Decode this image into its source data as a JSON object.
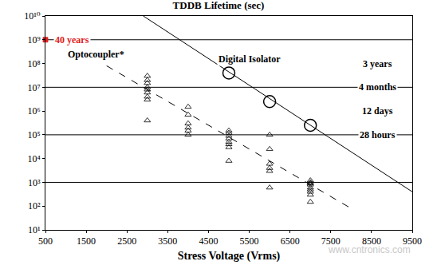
{
  "chart_data": {
    "type": "scatter",
    "title": "TDDB Lifetime (sec)",
    "x_label": "Stress Voltage (Vrms)",
    "log": "y",
    "grid": false,
    "xlim": [
      500,
      9500
    ],
    "xticks": [
      500,
      1500,
      2500,
      3500,
      4500,
      5500,
      6500,
      7500,
      8500,
      9500
    ],
    "ylim": [
      10,
      10000000000
    ],
    "yticks": [
      {
        "value": 10,
        "label": "10¹"
      },
      {
        "value": 100,
        "label": "10²"
      },
      {
        "value": 1000,
        "label": "10³"
      },
      {
        "value": 10000,
        "label": "10⁴"
      },
      {
        "value": 100000,
        "label": "10⁵"
      },
      {
        "value": 1000000,
        "label": "10⁶"
      },
      {
        "value": 10000000,
        "label": "10⁷"
      },
      {
        "value": 100000000,
        "label": "10⁸"
      },
      {
        "value": 1000000000,
        "label": "10⁹"
      },
      {
        "value": 10000000000,
        "label": "10¹⁰"
      }
    ],
    "hlines": [
      1000000000,
      10000000,
      100000,
      1000
    ],
    "series": [
      {
        "type": "line",
        "line_style": "solid",
        "color": "#000000",
        "x": [
          2900,
          9500
        ],
        "values": [
          10000000000,
          400
        ]
      },
      {
        "type": "scatter",
        "marker": "circle-open",
        "color": "#000000",
        "x": [
          5000,
          6000,
          7000
        ],
        "values": [
          40000000,
          2500000,
          250000
        ]
      },
      {
        "type": "line",
        "line_style": "dash",
        "color": "#000000",
        "x": [
          2000,
          8000
        ],
        "values": [
          80000000,
          80
        ]
      },
      {
        "type": "scatter",
        "marker": "triangle-up-open",
        "color": "#000000",
        "x": [
          3000,
          3000,
          3000,
          3000,
          3000,
          3000,
          3000,
          3000,
          3000,
          4000,
          4000,
          4000,
          4000,
          4000,
          4000,
          5000,
          5000,
          5000,
          5000,
          5000,
          5000,
          5000,
          5000,
          6000,
          6000,
          6000,
          6000,
          6000,
          6000,
          7000,
          7000,
          7000,
          7000,
          7000,
          7000,
          7000,
          7000,
          7000
        ],
        "values": [
          30000000,
          20000000,
          15000000,
          10000000,
          8000000,
          6000000,
          4000000,
          3000000,
          400000,
          1500000,
          700000,
          300000,
          200000,
          150000,
          100000,
          150000,
          120000,
          90000,
          70000,
          50000,
          40000,
          30000,
          8000,
          100000,
          25000,
          6000,
          4000,
          3000,
          600,
          1200,
          1000,
          900,
          800,
          600,
          500,
          400,
          300,
          150
        ]
      },
      {
        "type": "scatter",
        "marker": "square",
        "color": "#e02020",
        "x": [
          500
        ],
        "values": [
          1000000000
        ]
      }
    ],
    "annotations": [
      {
        "text": "40 years",
        "x": 700,
        "y": 1000000000,
        "color": "#e02020"
      },
      {
        "text": "Optocoupler*",
        "x": 1000,
        "y": 250000000,
        "color": "#000000"
      },
      {
        "text": "Digital Isolator",
        "x": 4700,
        "y": 150000000,
        "color": "#000000"
      },
      {
        "text": "3 years",
        "x": 8650,
        "y": 100000000,
        "color": "#000000"
      },
      {
        "text": "4 months",
        "x": 8650,
        "y": 10000000,
        "color": "#000000"
      },
      {
        "text": "12 days",
        "x": 8650,
        "y": 1000000,
        "color": "#000000"
      },
      {
        "text": "28 hours",
        "x": 8650,
        "y": 100000,
        "color": "#000000"
      }
    ],
    "watermark": "www.cntronics.com"
  }
}
